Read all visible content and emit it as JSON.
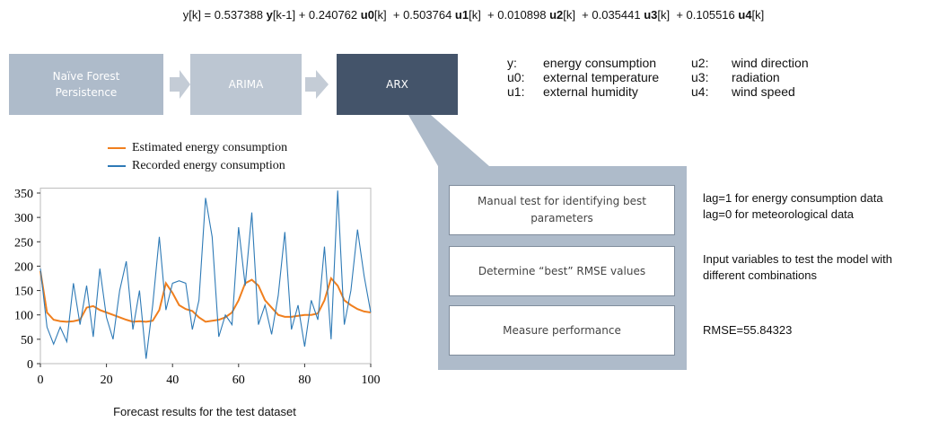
{
  "equation": [
    {
      "text": "y[k] = 0.537388 ",
      "bold": false
    },
    {
      "text": "y",
      "bold": true
    },
    {
      "text": "[k-1] + 0.240762 ",
      "bold": false
    },
    {
      "text": "u0",
      "bold": true
    },
    {
      "text": "[k]  + 0.503764 ",
      "bold": false
    },
    {
      "text": "u1",
      "bold": true
    },
    {
      "text": "[k]  + 0.010898 ",
      "bold": false
    },
    {
      "text": "u2",
      "bold": true
    },
    {
      "text": "[k]  + 0.035441 ",
      "bold": false
    },
    {
      "text": "u3",
      "bold": true
    },
    {
      "text": "[k]  + 0.105516 ",
      "bold": false
    },
    {
      "text": "u4",
      "bold": true
    },
    {
      "text": "[k]",
      "bold": false
    }
  ],
  "flow": [
    "Naïve Forest Persistence",
    "ARIMA",
    "ARX"
  ],
  "variables": [
    {
      "key": "y:",
      "label": "energy consumption"
    },
    {
      "key": "u0:",
      "label": "external temperature"
    },
    {
      "key": "u1:",
      "label": "external humidity"
    },
    {
      "key": "u2:",
      "label": "wind direction"
    },
    {
      "key": "u3:",
      "label": "radiation"
    },
    {
      "key": "u4:",
      "label": "wind speed"
    }
  ],
  "steps": [
    {
      "box": "Manual test for identifying best parameters",
      "note": [
        "lag=1 for energy consumption data",
        "lag=0 for meteorological data"
      ]
    },
    {
      "box": "Determine “best” RMSE values",
      "note": [
        "Input variables to test the model with",
        "different combinations"
      ]
    },
    {
      "box": "Measure performance",
      "note": [
        "RMSE=55.84323"
      ]
    }
  ],
  "chart_data": {
    "type": "line",
    "x": [
      0,
      2,
      4,
      6,
      8,
      10,
      12,
      14,
      16,
      18,
      20,
      22,
      24,
      26,
      28,
      30,
      32,
      34,
      36,
      38,
      40,
      42,
      44,
      46,
      48,
      50,
      52,
      54,
      56,
      58,
      60,
      62,
      64,
      66,
      68,
      70,
      72,
      74,
      76,
      78,
      80,
      82,
      84,
      86,
      88,
      90,
      92,
      94,
      96,
      98,
      100
    ],
    "series": [
      {
        "name": "Estimated energy consumption",
        "color": "#f07f1e",
        "values": [
          190,
          105,
          90,
          87,
          86,
          87,
          90,
          115,
          118,
          110,
          105,
          100,
          95,
          90,
          86,
          87,
          86,
          88,
          110,
          165,
          145,
          120,
          112,
          108,
          95,
          86,
          88,
          90,
          95,
          105,
          130,
          165,
          172,
          160,
          130,
          115,
          100,
          96,
          96,
          98,
          100,
          100,
          103,
          130,
          175,
          160,
          130,
          120,
          112,
          107,
          105
        ]
      },
      {
        "name": "Recorded energy consumption",
        "color": "#2e7ab6",
        "values": [
          195,
          75,
          40,
          75,
          45,
          165,
          80,
          160,
          55,
          195,
          95,
          50,
          150,
          210,
          70,
          150,
          10,
          120,
          260,
          110,
          165,
          170,
          165,
          70,
          130,
          340,
          260,
          55,
          100,
          80,
          280,
          160,
          310,
          80,
          120,
          60,
          140,
          270,
          70,
          120,
          35,
          130,
          90,
          240,
          50,
          355,
          80,
          150,
          275,
          180,
          105
        ]
      }
    ],
    "xlim": [
      0,
      100
    ],
    "xticks": [
      0,
      20,
      40,
      60,
      80,
      100
    ],
    "ylim": [
      0,
      360
    ],
    "yticks": [
      0,
      50,
      100,
      150,
      200,
      250,
      300,
      350
    ],
    "caption": "Forecast results for the test dataset"
  }
}
